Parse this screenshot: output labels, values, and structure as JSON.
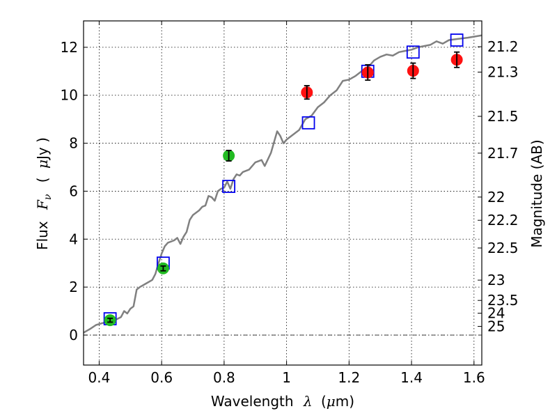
{
  "chart_data": {
    "type": "scatter",
    "xlabel_prefix": "Wavelength",
    "xlabel_symbol": "λ",
    "xlabel_unit_open": "(",
    "xlabel_unit_mu": "μ",
    "xlabel_unit_rest": "m)",
    "ylabel_prefix": "Flux",
    "ylabel_symbol": "F",
    "ylabel_sub": "ν",
    "ylabel_unit_open": "(",
    "ylabel_unit_mu": "μ",
    "ylabel_unit_rest": "Jy )",
    "y2label": "Magnitude (AB)",
    "xlim": [
      0.35,
      1.625
    ],
    "ylim": [
      -1.25,
      13.1
    ],
    "grid": true,
    "x_ticks": [
      0.4,
      0.6,
      0.8,
      1.0,
      1.2,
      1.4,
      1.6
    ],
    "x_tick_labels": [
      "0.4",
      "0.6",
      "0.8",
      "1",
      "1.2",
      "1.4",
      "1.6"
    ],
    "y_ticks": [
      0,
      2,
      4,
      6,
      8,
      10,
      12
    ],
    "y_tick_labels": [
      "0",
      "2",
      "4",
      "6",
      "8",
      "10",
      "12"
    ],
    "mag_ticks": [
      21.2,
      21.3,
      21.5,
      21.7,
      22,
      22.2,
      22.5,
      23,
      23.5,
      24,
      25
    ],
    "mag_tick_labels": [
      "21.2",
      "21.3",
      "21.5",
      "21.7",
      "22",
      "22.2",
      "22.5",
      "23",
      "23.5",
      "24",
      "25"
    ],
    "zero_line_y": 0,
    "colors": {
      "model": "#808080",
      "green_points": "#22bb22",
      "red_points": "#ff1111",
      "squares": "#0000ee",
      "errorbars": "#000000"
    },
    "series": [
      {
        "kind": "line",
        "color": "#808080",
        "points": [
          [
            0.35,
            0.1
          ],
          [
            0.37,
            0.25
          ],
          [
            0.39,
            0.42
          ],
          [
            0.41,
            0.5
          ],
          [
            0.43,
            0.55
          ],
          [
            0.45,
            0.62
          ],
          [
            0.47,
            0.75
          ],
          [
            0.48,
            1.0
          ],
          [
            0.49,
            0.9
          ],
          [
            0.5,
            1.1
          ],
          [
            0.51,
            1.2
          ],
          [
            0.52,
            1.9
          ],
          [
            0.53,
            2.0
          ],
          [
            0.55,
            2.15
          ],
          [
            0.57,
            2.3
          ],
          [
            0.58,
            2.55
          ],
          [
            0.59,
            3.0
          ],
          [
            0.6,
            3.4
          ],
          [
            0.61,
            3.7
          ],
          [
            0.62,
            3.85
          ],
          [
            0.64,
            3.95
          ],
          [
            0.65,
            4.05
          ],
          [
            0.66,
            3.8
          ],
          [
            0.67,
            4.1
          ],
          [
            0.68,
            4.3
          ],
          [
            0.69,
            4.8
          ],
          [
            0.7,
            5.0
          ],
          [
            0.71,
            5.1
          ],
          [
            0.72,
            5.2
          ],
          [
            0.73,
            5.35
          ],
          [
            0.74,
            5.4
          ],
          [
            0.75,
            5.8
          ],
          [
            0.76,
            5.75
          ],
          [
            0.77,
            5.6
          ],
          [
            0.78,
            6.0
          ],
          [
            0.79,
            6.1
          ],
          [
            0.8,
            6.15
          ],
          [
            0.81,
            6.4
          ],
          [
            0.82,
            6.1
          ],
          [
            0.83,
            6.5
          ],
          [
            0.84,
            6.7
          ],
          [
            0.85,
            6.65
          ],
          [
            0.86,
            6.8
          ],
          [
            0.88,
            6.9
          ],
          [
            0.9,
            7.2
          ],
          [
            0.92,
            7.3
          ],
          [
            0.93,
            7.05
          ],
          [
            0.95,
            7.6
          ],
          [
            0.97,
            8.5
          ],
          [
            0.98,
            8.3
          ],
          [
            0.99,
            8.0
          ],
          [
            1.0,
            8.15
          ],
          [
            1.02,
            8.35
          ],
          [
            1.04,
            8.55
          ],
          [
            1.06,
            9.0
          ],
          [
            1.08,
            9.15
          ],
          [
            1.1,
            9.5
          ],
          [
            1.12,
            9.7
          ],
          [
            1.14,
            10.0
          ],
          [
            1.16,
            10.2
          ],
          [
            1.18,
            10.6
          ],
          [
            1.2,
            10.65
          ],
          [
            1.22,
            10.8
          ],
          [
            1.24,
            11.0
          ],
          [
            1.26,
            11.15
          ],
          [
            1.28,
            11.45
          ],
          [
            1.3,
            11.6
          ],
          [
            1.32,
            11.7
          ],
          [
            1.34,
            11.65
          ],
          [
            1.36,
            11.8
          ],
          [
            1.38,
            11.85
          ],
          [
            1.4,
            11.9
          ],
          [
            1.42,
            12.0
          ],
          [
            1.44,
            12.05
          ],
          [
            1.46,
            12.1
          ],
          [
            1.48,
            12.25
          ],
          [
            1.5,
            12.15
          ],
          [
            1.52,
            12.3
          ],
          [
            1.55,
            12.35
          ],
          [
            1.58,
            12.4
          ],
          [
            1.625,
            12.5
          ]
        ]
      },
      {
        "kind": "circles",
        "color": "#22bb22",
        "points": [
          {
            "x": 0.435,
            "y": 0.62,
            "err": 0.08
          },
          {
            "x": 0.605,
            "y": 2.78,
            "err": 0.1
          },
          {
            "x": 0.815,
            "y": 7.48,
            "err": 0.22
          }
        ]
      },
      {
        "kind": "circles",
        "color": "#ff1111",
        "points": [
          {
            "x": 1.065,
            "y": 10.12,
            "err": 0.28
          },
          {
            "x": 1.26,
            "y": 10.95,
            "err": 0.32
          },
          {
            "x": 1.405,
            "y": 11.02,
            "err": 0.32
          },
          {
            "x": 1.545,
            "y": 11.48,
            "err": 0.32
          }
        ]
      },
      {
        "kind": "squares",
        "color": "#0000ee",
        "points": [
          {
            "x": 0.435,
            "y": 0.68
          },
          {
            "x": 0.605,
            "y": 3.0
          },
          {
            "x": 0.815,
            "y": 6.2
          },
          {
            "x": 1.07,
            "y": 8.85
          },
          {
            "x": 1.26,
            "y": 11.0
          },
          {
            "x": 1.405,
            "y": 11.8
          },
          {
            "x": 1.545,
            "y": 12.3
          }
        ]
      }
    ]
  }
}
